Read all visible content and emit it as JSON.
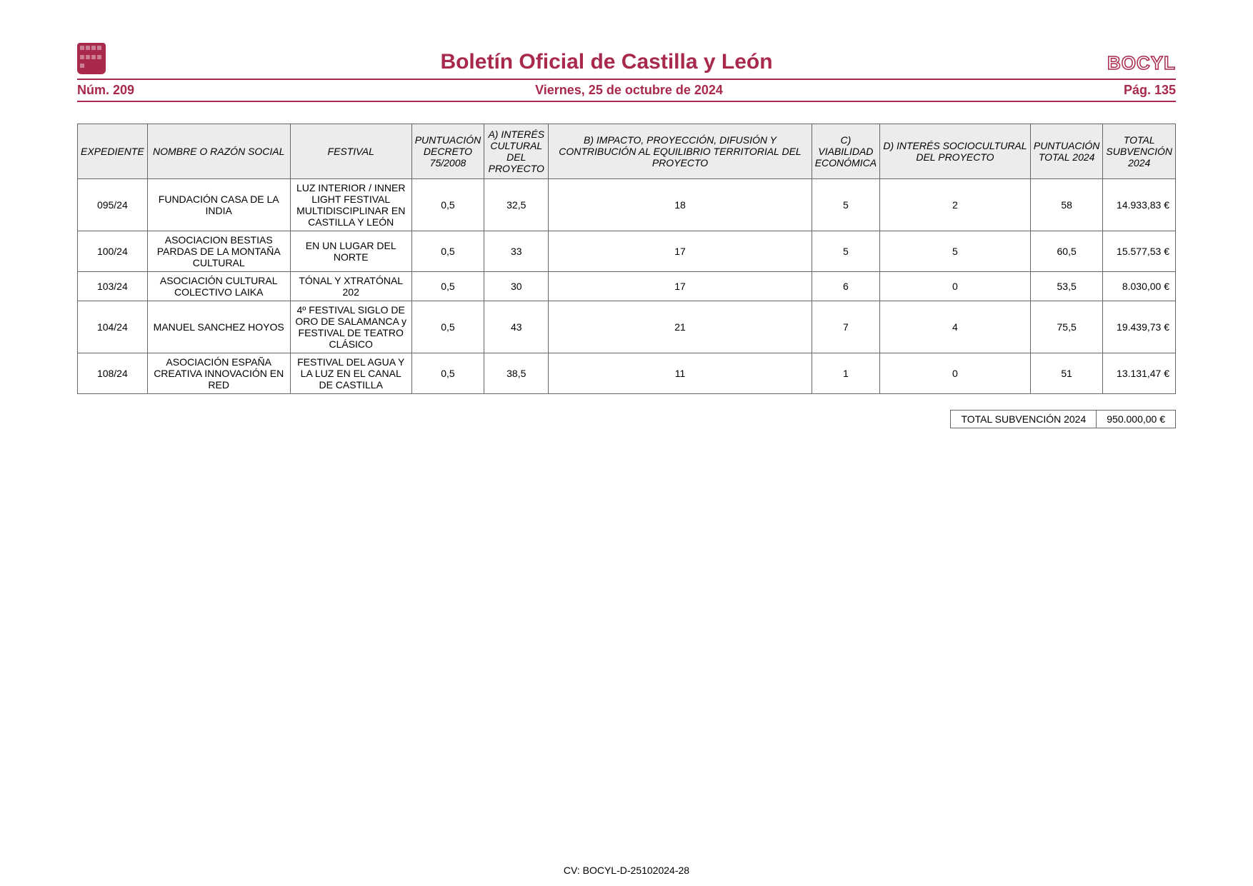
{
  "header": {
    "title": "Boletín Oficial de Castilla y León",
    "logo_text": "BOCYL",
    "issue": "Núm. 209",
    "date": "Viernes, 25 de octubre de 2024",
    "page": "Pág. 135",
    "accent_color": "#a8294b"
  },
  "table": {
    "columns": [
      "EXPEDIENTE",
      "NOMBRE O RAZÓN SOCIAL",
      "FESTIVAL",
      "PUNTUACIÓN DECRETO 75/2008",
      "A) INTERÉS CULTURAL DEL PROYECTO",
      "B) IMPACTO, PROYECCIÓN, DIFUSIÓN Y CONTRIBUCIÓN AL EQUILIBRIO TERRITORIAL DEL PROYECTO",
      "C) VIABILIDAD ECONÓMICA",
      "D) INTERÉS SOCIOCULTURAL DEL PROYECTO",
      "PUNTUACIÓN TOTAL 2024",
      "TOTAL SUBVENCIÓN 2024"
    ],
    "rows": [
      {
        "exp": "095/24",
        "name": "FUNDACIÓN CASA DE LA INDIA",
        "festival": "LUZ INTERIOR / INNER LIGHT FESTIVAL MULTIDISCIPLINAR EN CASTILLA Y LEÓN",
        "p_dec": "0,5",
        "a": "32,5",
        "b": "18",
        "c": "5",
        "d": "2",
        "p_total": "58",
        "sub": "14.933,83 €"
      },
      {
        "exp": "100/24",
        "name": "ASOCIACION BESTIAS PARDAS DE LA MONTAÑA CULTURAL",
        "festival": "EN UN LUGAR DEL NORTE",
        "p_dec": "0,5",
        "a": "33",
        "b": "17",
        "c": "5",
        "d": "5",
        "p_total": "60,5",
        "sub": "15.577,53 €"
      },
      {
        "exp": "103/24",
        "name": "ASOCIACIÓN CULTURAL COLECTIVO LAIKA",
        "festival": "TÓNAL Y XTRATÓNAL 202",
        "p_dec": "0,5",
        "a": "30",
        "b": "17",
        "c": "6",
        "d": "0",
        "p_total": "53,5",
        "sub": "8.030,00 €"
      },
      {
        "exp": "104/24",
        "name": "MANUEL SANCHEZ HOYOS",
        "festival": "4º FESTIVAL SIGLO DE ORO DE SALAMANCA y FESTIVAL DE TEATRO CLÁSICO",
        "p_dec": "0,5",
        "a": "43",
        "b": "21",
        "c": "7",
        "d": "4",
        "p_total": "75,5",
        "sub": "19.439,73 €"
      },
      {
        "exp": "108/24",
        "name": "ASOCIACIÓN ESPAÑA CREATIVA INNOVACIÓN EN RED",
        "festival": "FESTIVAL DEL AGUA Y LA LUZ EN EL CANAL DE CASTILLA",
        "p_dec": "0,5",
        "a": "38,5",
        "b": "11",
        "c": "1",
        "d": "0",
        "p_total": "51",
        "sub": "13.131,47 €"
      }
    ],
    "header_bg": "#ececec",
    "border_color": "#666666",
    "fontsize": 14
  },
  "totals": {
    "label": "TOTAL SUBVENCIÓN 2024",
    "value": "950.000,00 €"
  },
  "footer": {
    "cv": "CV: BOCYL-D-25102024-28"
  }
}
